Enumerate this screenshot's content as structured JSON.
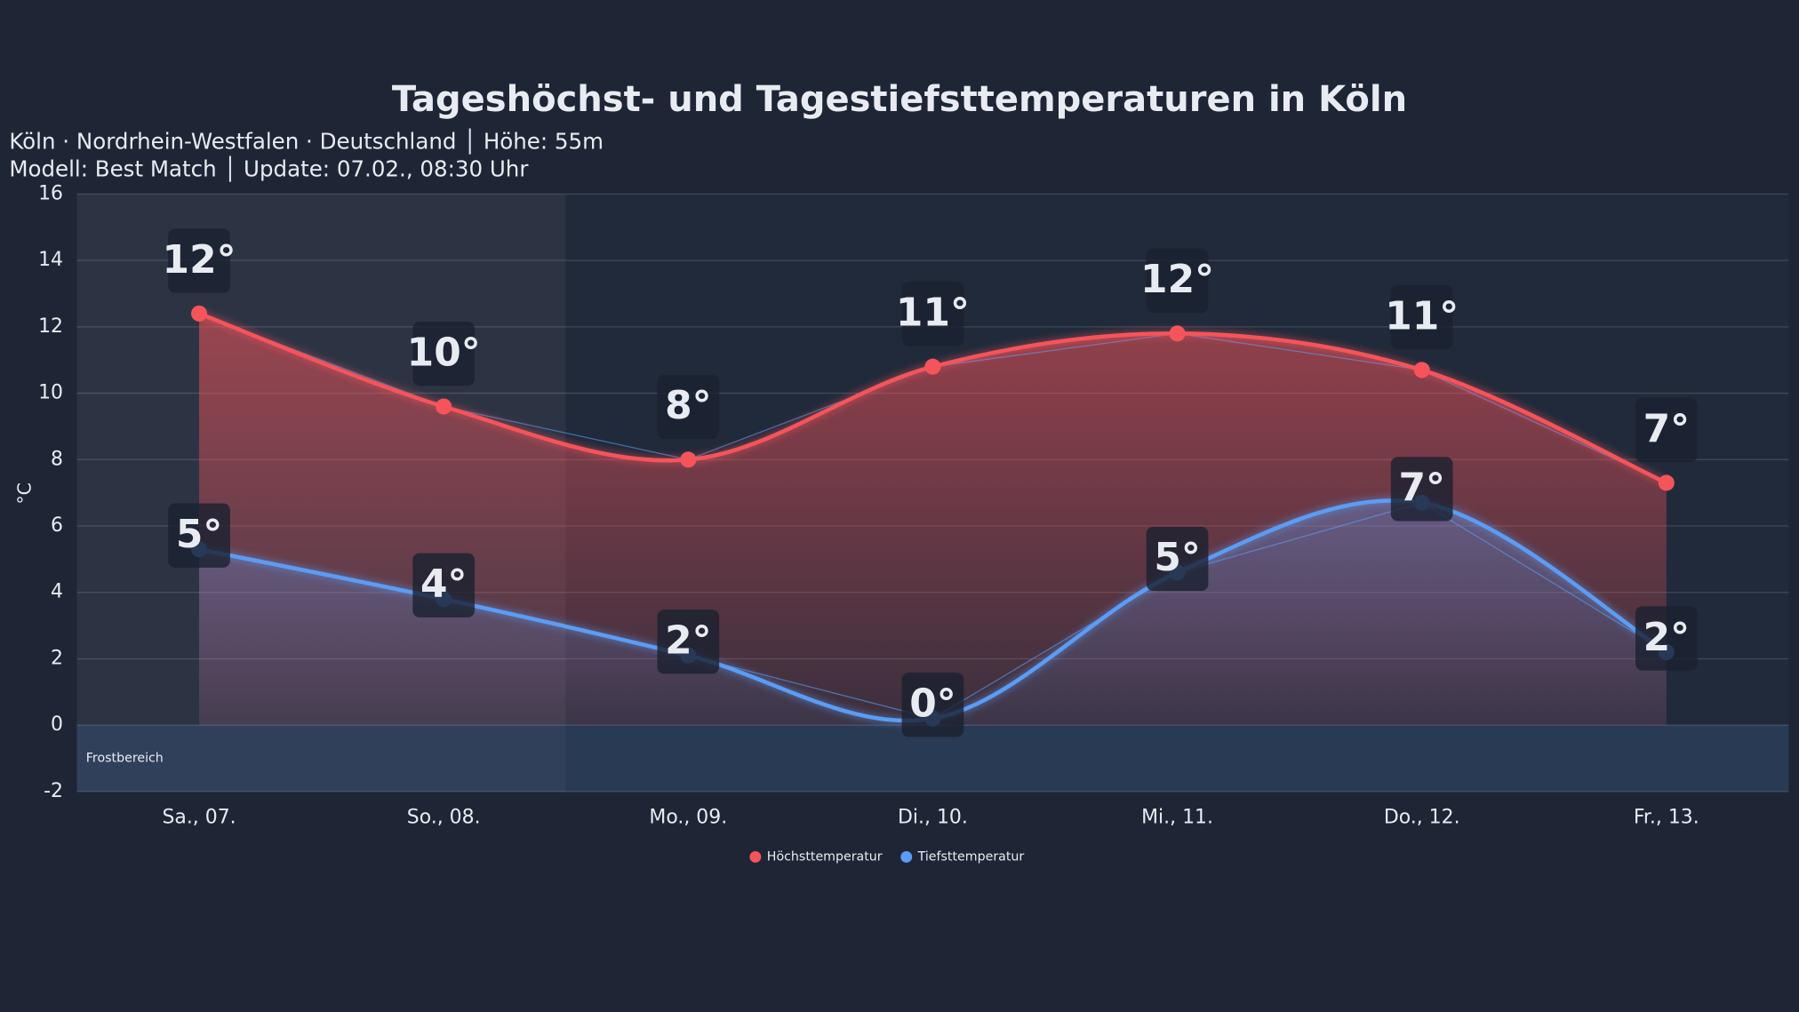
{
  "chart_data": {
    "type": "line",
    "title": "Tageshöchst- und Tagestiefsttemperaturen in Köln",
    "subtitle": [
      "Köln · Nordrhein-Westfalen · Deutschland │ Höhe: 55m",
      "Modell: Best Match │ Update: 07.02., 08:30 Uhr"
    ],
    "y_label": "°C",
    "categories": [
      "Sa., 07.",
      "So., 08.",
      "Mo., 09.",
      "Di., 10.",
      "Mi., 11.",
      "Do., 12.",
      "Fr., 13."
    ],
    "series": [
      {
        "name": "Höchsttemperatur",
        "color": "#f5545a",
        "values": [
          12.4,
          9.6,
          8.0,
          10.8,
          11.8,
          10.7,
          7.3
        ],
        "value_labels": [
          "12°",
          "10°",
          "8°",
          "11°",
          "12°",
          "11°",
          "7°"
        ]
      },
      {
        "name": "Tiefsttemperatur",
        "color": "#5b9cf5",
        "values": [
          5.3,
          3.8,
          2.1,
          0.2,
          4.6,
          6.7,
          2.2
        ],
        "value_labels": [
          "5°",
          "4°",
          "2°",
          "0°",
          "5°",
          "7°",
          "2°"
        ]
      }
    ],
    "ylim": [
      -2,
      16
    ],
    "yticks": [
      -2,
      0,
      2,
      4,
      6,
      8,
      10,
      12,
      14,
      16
    ],
    "grid": true,
    "frost_zone": {
      "label": "Frostbereich",
      "range": [
        -2,
        0
      ]
    },
    "legend": "bottom"
  }
}
